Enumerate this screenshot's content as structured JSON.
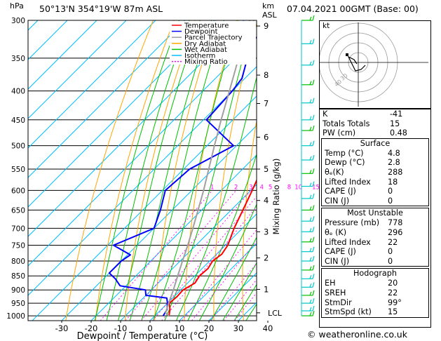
{
  "header": {
    "hpa_label": "hPa",
    "location": "50°13'N  354°19'W  87m  ASL",
    "km_label": "km",
    "asl_label": "ASL",
    "datetime": "07.04.2021  00GMT  (Base: 00)"
  },
  "chart_data": {
    "type": "line",
    "xlabel": "Dewpoint / Temperature (°C)",
    "ylabel": "",
    "right_axis_label": "Mixing Ratio (g/kg)",
    "x_ticks": [
      -30,
      -20,
      -10,
      0,
      10,
      20,
      30,
      40
    ],
    "xlim": [
      -38,
      40
    ],
    "pressure_ticks": [
      300,
      350,
      400,
      450,
      500,
      550,
      600,
      650,
      700,
      750,
      800,
      850,
      900,
      950,
      1000
    ],
    "ylim_hpa": [
      1020,
      300
    ],
    "skew": 1.0,
    "height_ticks": [
      {
        "p": 307,
        "label": "9"
      },
      {
        "p": 375,
        "label": "8"
      },
      {
        "p": 421,
        "label": "7"
      },
      {
        "p": 483,
        "label": "6"
      },
      {
        "p": 550,
        "label": "5"
      },
      {
        "p": 625,
        "label": "4"
      },
      {
        "p": 710,
        "label": "3"
      },
      {
        "p": 790,
        "label": "2"
      },
      {
        "p": 898,
        "label": "1"
      }
    ],
    "lcl": {
      "p": 988,
      "label": "LCL"
    },
    "mixing_ratio_labels": [
      "1",
      "2",
      "3",
      "4",
      "5",
      "8",
      "10",
      "15",
      "20",
      "25"
    ],
    "mixing_ratio_values": [
      1,
      2,
      3,
      4,
      5,
      8,
      10,
      15,
      20,
      25
    ],
    "legend": {
      "placement": "top-left",
      "entries": [
        {
          "name": "Temperature",
          "color": "#ff0000"
        },
        {
          "name": "Dewpoint",
          "color": "#0000ff"
        },
        {
          "name": "Parcel Trajectory",
          "color": "#a0a0a0"
        },
        {
          "name": "Dry Adiabat",
          "color": "#ffa500"
        },
        {
          "name": "Wet Adiabat",
          "color": "#00c000"
        },
        {
          "name": "Isotherm",
          "color": "#00bfff"
        },
        {
          "name": "Mixing Ratio",
          "color": "#ff00ff"
        }
      ]
    },
    "series": [
      {
        "name": "Temperature",
        "color": "#ff0000",
        "points": [
          {
            "p": 1000,
            "t": 4.8
          },
          {
            "p": 975,
            "t": 3.0
          },
          {
            "p": 950,
            "t": 0.6
          },
          {
            "p": 925,
            "t": 1.0
          },
          {
            "p": 900,
            "t": 0.8
          },
          {
            "p": 875,
            "t": 2.5
          },
          {
            "p": 850,
            "t": 1.6
          },
          {
            "p": 825,
            "t": 2.0
          },
          {
            "p": 800,
            "t": 1.0
          },
          {
            "p": 778,
            "t": 1.8
          },
          {
            "p": 750,
            "t": 0.8
          },
          {
            "p": 700,
            "t": -2.8
          },
          {
            "p": 650,
            "t": -6.0
          },
          {
            "p": 600,
            "t": -9.5
          },
          {
            "p": 550,
            "t": -13.5
          },
          {
            "p": 500,
            "t": -19.0
          },
          {
            "p": 450,
            "t": -24.0
          },
          {
            "p": 400,
            "t": -30.5
          },
          {
            "p": 350,
            "t": -38.0
          },
          {
            "p": 320,
            "t": -43.5
          },
          {
            "p": 300,
            "t": -46.0
          }
        ]
      },
      {
        "name": "Dewpoint",
        "color": "#0000ff",
        "points": [
          {
            "p": 1000,
            "t": 2.8
          },
          {
            "p": 975,
            "t": 2.0
          },
          {
            "p": 950,
            "t": 0.0
          },
          {
            "p": 930,
            "t": -2.0
          },
          {
            "p": 920,
            "t": -10.0
          },
          {
            "p": 900,
            "t": -12.0
          },
          {
            "p": 885,
            "t": -22.0
          },
          {
            "p": 860,
            "t": -26.0
          },
          {
            "p": 840,
            "t": -30.0
          },
          {
            "p": 800,
            "t": -30.0
          },
          {
            "p": 780,
            "t": -29.0
          },
          {
            "p": 750,
            "t": -38.0
          },
          {
            "p": 700,
            "t": -30.0
          },
          {
            "p": 650,
            "t": -34.0
          },
          {
            "p": 600,
            "t": -39.0
          },
          {
            "p": 550,
            "t": -38.0
          },
          {
            "p": 500,
            "t": -31.0
          },
          {
            "p": 450,
            "t": -49.0
          },
          {
            "p": 400,
            "t": -50.0
          },
          {
            "p": 380,
            "t": -51.0
          },
          {
            "p": 350,
            "t": -56.0
          },
          {
            "p": 330,
            "t": -60.0
          },
          {
            "p": 315,
            "t": -60.0
          },
          {
            "p": 300,
            "t": -65.0
          }
        ]
      },
      {
        "name": "Parcel Trajectory",
        "color": "#a0a0a0",
        "points": [
          {
            "p": 1000,
            "t": 4.8
          },
          {
            "p": 988,
            "t": 2.6
          },
          {
            "p": 950,
            "t": 0.4
          },
          {
            "p": 900,
            "t": -2.5
          },
          {
            "p": 850,
            "t": -5.8
          },
          {
            "p": 800,
            "t": -9.2
          },
          {
            "p": 750,
            "t": -12.8
          },
          {
            "p": 700,
            "t": -16.8
          },
          {
            "p": 650,
            "t": -21.2
          },
          {
            "p": 600,
            "t": -26.0
          },
          {
            "p": 550,
            "t": -31.5
          },
          {
            "p": 500,
            "t": -37.5
          },
          {
            "p": 450,
            "t": -44.0
          },
          {
            "p": 400,
            "t": -51.0
          },
          {
            "p": 350,
            "t": -59.0
          },
          {
            "p": 300,
            "t": -68.0
          }
        ]
      }
    ]
  },
  "hodograph": {
    "unit_label": "kt",
    "ring_labels": [
      "40",
      "30"
    ]
  },
  "stability": {
    "rows": [
      {
        "label": "K",
        "value": "-41"
      },
      {
        "label": "Totals Totals",
        "value": "15"
      },
      {
        "label": "PW (cm)",
        "value": "0.48"
      }
    ]
  },
  "surface": {
    "title": "Surface",
    "rows": [
      {
        "label": "Temp (°C)",
        "value": "4.8"
      },
      {
        "label": "Dewp (°C)",
        "value": "2.8"
      },
      {
        "label": "θₑ(K)",
        "value": "288"
      },
      {
        "label": "Lifted Index",
        "value": "18"
      },
      {
        "label": "CAPE (J)",
        "value": "0"
      },
      {
        "label": "CIN (J)",
        "value": "0"
      }
    ]
  },
  "most_unstable": {
    "title": "Most Unstable",
    "rows": [
      {
        "label": "Pressure (mb)",
        "value": "778"
      },
      {
        "label": "θₑ (K)",
        "value": "296"
      },
      {
        "label": "Lifted Index",
        "value": "22"
      },
      {
        "label": "CAPE (J)",
        "value": "0"
      },
      {
        "label": "CIN (J)",
        "value": "0"
      }
    ]
  },
  "hodograph_table": {
    "title": "Hodograph",
    "rows": [
      {
        "label": "EH",
        "value": "20"
      },
      {
        "label": "SREH",
        "value": "22"
      },
      {
        "label": "StmDir",
        "value": "99°"
      },
      {
        "label": "StmSpd (kt)",
        "value": "15"
      }
    ]
  },
  "footer": {
    "copyright": "© weatheronline.co.uk"
  },
  "colors": {
    "temperature": "#ff0000",
    "dewpoint": "#0000ff",
    "parcel": "#a0a0a0",
    "dry_adiabat": "#ffa500",
    "wet_adiabat": "#00c000",
    "isotherm": "#00bfff",
    "mixing_ratio": "#ff00ff",
    "wind_barbs": "#00c8c8"
  }
}
